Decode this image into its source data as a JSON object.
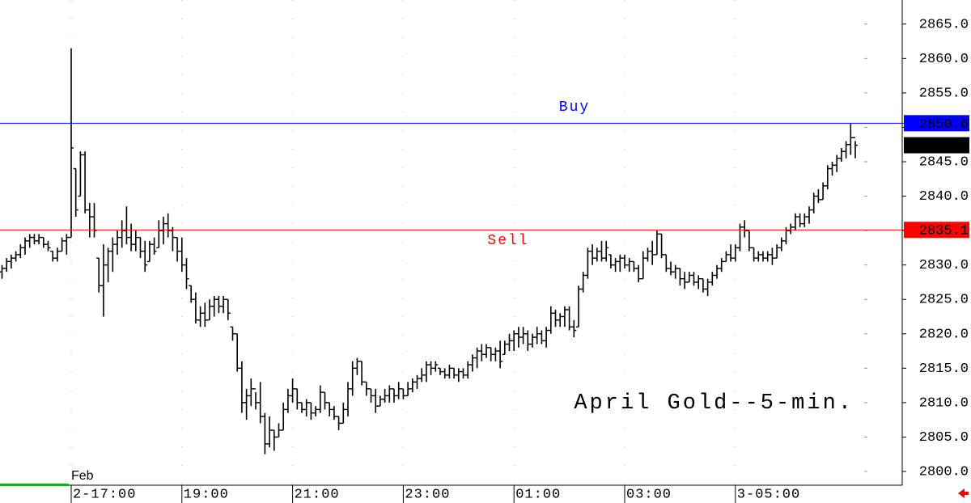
{
  "chart_data": {
    "type": "ohlc",
    "annotation": "April Gold--5-min.",
    "date_label": "Feb",
    "categories": [
      null,
      null,
      null,
      null,
      null,
      null,
      null,
      null,
      null,
      null,
      null,
      null,
      null,
      null,
      null,
      "2-17:00",
      null,
      null,
      null,
      null,
      null,
      null,
      null,
      null,
      null,
      null,
      null,
      null,
      null,
      null,
      null,
      null,
      null,
      null,
      null,
      null,
      null,
      null,
      null,
      "19:00",
      null,
      null,
      null,
      null,
      null,
      null,
      null,
      null,
      null,
      null,
      null,
      null,
      null,
      null,
      null,
      null,
      null,
      null,
      null,
      null,
      null,
      null,
      null,
      "21:00",
      null,
      null,
      null,
      null,
      null,
      null,
      null,
      null,
      null,
      null,
      null,
      null,
      null,
      null,
      null,
      null,
      null,
      null,
      null,
      null,
      null,
      null,
      null,
      "23:00",
      null,
      null,
      null,
      null,
      null,
      null,
      null,
      null,
      null,
      null,
      null,
      null,
      null,
      null,
      null,
      null,
      null,
      null,
      null,
      null,
      null,
      null,
      null,
      "01:00",
      null,
      null,
      null,
      null,
      null,
      null,
      null,
      null,
      null,
      null,
      null,
      null,
      null,
      null,
      null,
      null,
      null,
      null,
      null,
      null,
      null,
      null,
      null,
      "03:00",
      null,
      null,
      null,
      null,
      null,
      null,
      null,
      null,
      null,
      null,
      null,
      null,
      null,
      null,
      null,
      null,
      null,
      null,
      null,
      null,
      null,
      null,
      null,
      "3-05:00",
      null,
      null,
      null,
      null,
      null,
      null,
      null,
      null,
      null,
      null,
      null,
      null,
      null,
      null,
      null,
      null,
      null,
      null,
      null,
      null,
      null,
      null,
      null,
      null,
      null,
      null
    ],
    "open": [
      2829,
      2829.5,
      2830.5,
      2831,
      2831.5,
      2832.5,
      2833.5,
      2834,
      2833.5,
      2834,
      2833,
      2832,
      2831,
      2832,
      2833.5,
      2834,
      2844,
      2840,
      2846,
      2838,
      2837,
      2831,
      2827,
      2830,
      2832,
      2833,
      2834,
      2835,
      2834,
      2833,
      2834,
      2832,
      2830.5,
      2833,
      2832.5,
      2835,
      2836,
      2835,
      2834,
      2832,
      2830,
      2827,
      2825,
      2822,
      2823,
      2822,
      2824,
      2825,
      2824,
      2825,
      2821,
      2820,
      2815,
      2810,
      2811,
      2812,
      2810,
      2808,
      2804,
      2806,
      2805,
      2806,
      2809,
      2811,
      2812,
      2810,
      2809,
      2810,
      2808.5,
      2809,
      2811.5,
      2810,
      2809,
      2808,
      2807,
      2809,
      2812,
      2815,
      2816,
      2813,
      2812,
      2811,
      2809.5,
      2810.5,
      2811,
      2812,
      2811,
      2812,
      2811,
      2812,
      2813,
      2813.5,
      2814,
      2815.5,
      2815,
      2815,
      2814.5,
      2814,
      2815,
      2814,
      2814.5,
      2814,
      2815.5,
      2816.5,
      2817.5,
      2817,
      2818,
      2817,
      2817.5,
      2817,
      2818.5,
      2819,
      2820,
      2819.5,
      2820,
      2818.5,
      2819.5,
      2820,
      2819,
      2820.5,
      2823,
      2822,
      2822.5,
      2823.5,
      2821,
      2821,
      2826.5,
      2828.5,
      2832,
      2831,
      2832,
      2831,
      2831.5,
      2830,
      2830.5,
      2831,
      2830,
      2830.5,
      2829.5,
      2828,
      2831,
      2832,
      2831.5,
      2834.5,
      2831.5,
      2829.5,
      2829,
      2829.5,
      2828,
      2827.5,
      2828.5,
      2827.5,
      2828,
      2826.5,
      2827.5,
      2828.5,
      2829.5,
      2830.5,
      2831.5,
      2831,
      2832.5,
      2835.5,
      2835,
      2832.5,
      2831,
      2831.5,
      2831,
      2831.5,
      2831,
      2832.5,
      2833.5,
      2835,
      2835.5,
      2837,
      2836,
      2837,
      2838,
      2840,
      2839.5,
      2841.5,
      2844,
      2844.5,
      2845.5,
      2846.5,
      2847.5,
      2848.5
    ],
    "high": [
      2830,
      2831,
      2831.5,
      2832,
      2833,
      2834,
      2834.5,
      2834.5,
      2834.5,
      2834,
      2833.5,
      2832,
      2832.5,
      2834,
      2834.5,
      2861.5,
      2844,
      2846.5,
      2846.5,
      2839,
      2839,
      2831,
      2833,
      2832.5,
      2834,
      2835,
      2836.5,
      2838.5,
      2836,
      2835,
      2834,
      2833.5,
      2833.5,
      2834,
      2836.5,
      2837,
      2837.5,
      2835.5,
      2834,
      2834,
      2831,
      2827,
      2826,
      2824,
      2824.5,
      2825,
      2825.5,
      2825.5,
      2825.5,
      2825,
      2821,
      2820,
      2816,
      2812,
      2813.5,
      2811.5,
      2813,
      2808.5,
      2808,
      2806,
      2807,
      2810,
      2812,
      2813.5,
      2812,
      2810,
      2810.5,
      2810,
      2809.5,
      2812.5,
      2811.5,
      2810,
      2809.5,
      2808,
      2810,
      2813,
      2816,
      2816.5,
      2816,
      2813,
      2812,
      2812,
      2811,
      2812,
      2812.5,
      2812,
      2813,
      2812,
      2813,
      2813.5,
      2814,
      2815,
      2816,
      2816,
      2816,
      2815,
      2815,
      2815.5,
      2815,
      2815,
      2815,
      2816,
      2817,
      2818,
      2818.5,
      2818.5,
      2818,
      2818,
      2819,
      2819,
      2820,
      2820.5,
      2821,
      2821,
      2820.5,
      2820,
      2821,
      2820.5,
      2821,
      2824,
      2823.5,
      2823,
      2824,
      2824,
      2822,
      2827,
      2829,
      2832.5,
      2833,
      2832.5,
      2833.5,
      2833.5,
      2831.5,
      2831,
      2831.5,
      2831.5,
      2831,
      2830.5,
      2830,
      2832,
      2832.5,
      2833.5,
      2835,
      2834.5,
      2831.5,
      2830.5,
      2830,
      2829.5,
      2829,
      2829,
      2829,
      2828.5,
      2828,
      2828,
      2829,
      2830,
      2831,
      2832,
      2833,
      2833,
      2836,
      2836.5,
      2835,
      2832.5,
      2832,
      2832,
      2832,
      2832.5,
      2833,
      2834,
      2835.5,
      2836,
      2837.5,
      2837.5,
      2837.5,
      2838.5,
      2840.5,
      2841,
      2842,
      2844.5,
      2845,
      2846,
      2847,
      2848,
      2850.6,
      2848
    ],
    "low": [
      2828,
      2829,
      2829.5,
      2830.5,
      2831,
      2831.5,
      2832.5,
      2833,
      2833,
      2832.5,
      2832,
      2830.5,
      2830.5,
      2832,
      2831.5,
      2834,
      2837,
      2840,
      2837.5,
      2834,
      2834,
      2826,
      2822.5,
      2827.5,
      2829,
      2831.5,
      2832.5,
      2833,
      2832,
      2832,
      2831,
      2829,
      2830.5,
      2831.5,
      2832.5,
      2833,
      2834,
      2832,
      2830.5,
      2829,
      2826.5,
      2824.5,
      2821.5,
      2821,
      2821,
      2822,
      2822.5,
      2823,
      2823,
      2822,
      2819,
      2814.5,
      2808.5,
      2807.5,
      2809.5,
      2809,
      2807,
      2802.5,
      2803.5,
      2803,
      2805,
      2806,
      2808.5,
      2810,
      2809,
      2808.5,
      2808,
      2807.5,
      2808,
      2808.5,
      2809,
      2808,
      2807.5,
      2806,
      2807,
      2808,
      2811,
      2814,
      2812.5,
      2811,
      2810,
      2808.5,
      2809.5,
      2810,
      2810,
      2810,
      2810.5,
      2810.5,
      2811,
      2811.5,
      2812,
      2813,
      2813,
      2814,
      2814.5,
      2814,
      2813.5,
      2813.5,
      2813.5,
      2813,
      2813.5,
      2813.5,
      2814.5,
      2815,
      2816,
      2816.5,
      2816,
      2816,
      2815,
      2817,
      2817.5,
      2817.5,
      2818,
      2818.5,
      2817.5,
      2818,
      2818.5,
      2818.5,
      2818,
      2820,
      2821,
      2821,
      2821,
      2820.5,
      2819.5,
      2821,
      2826,
      2828,
      2830,
      2830.5,
      2830.5,
      2830.5,
      2829.5,
      2829,
      2829,
      2829.5,
      2829,
      2829,
      2827.5,
      2828,
      2830.5,
      2830,
      2831.5,
      2831,
      2829,
      2828.5,
      2828,
      2827,
      2826.5,
      2827.5,
      2827,
      2826.5,
      2826,
      2825.5,
      2827,
      2828,
      2829,
      2830.5,
      2830.5,
      2830.5,
      2832,
      2834,
      2832,
      2830.5,
      2830.5,
      2830.5,
      2830.5,
      2830,
      2831,
      2832,
      2833,
      2834.5,
      2835,
      2835.5,
      2835.5,
      2836,
      2837.5,
      2839,
      2839.5,
      2841,
      2843,
      2843.5,
      2845,
      2845.5,
      2846,
      2845.5
    ],
    "close": [
      2829.5,
      2830.5,
      2831,
      2831.5,
      2832.5,
      2833.5,
      2834,
      2833.5,
      2834,
      2833,
      2832.5,
      2831,
      2832,
      2833.5,
      2834,
      2847,
      2838,
      2846,
      2838,
      2837,
      2835,
      2827,
      2830,
      2832,
      2833,
      2834,
      2835,
      2834,
      2833,
      2834,
      2832,
      2830,
      2833,
      2832,
      2835,
      2836,
      2835,
      2834,
      2832,
      2830,
      2828,
      2825,
      2822,
      2823,
      2822,
      2824,
      2825,
      2824,
      2825,
      2823,
      2820,
      2815,
      2810,
      2811,
      2812,
      2810,
      2808,
      2804,
      2806,
      2805,
      2806,
      2809,
      2811,
      2812,
      2810,
      2809,
      2810,
      2808.5,
      2809,
      2811.5,
      2810,
      2809,
      2808,
      2807,
      2809,
      2812,
      2815,
      2816,
      2813,
      2812,
      2811,
      2809.5,
      2810.5,
      2811,
      2812,
      2811,
      2812,
      2811,
      2812,
      2813,
      2813.5,
      2814,
      2815.5,
      2815,
      2815.5,
      2814.5,
      2814,
      2815,
      2814,
      2814.5,
      2814,
      2815.5,
      2816.5,
      2817.5,
      2817,
      2818,
      2817,
      2817.5,
      2816,
      2818.5,
      2819,
      2820,
      2819.5,
      2820,
      2818.5,
      2819.5,
      2820,
      2819,
      2820.5,
      2823,
      2822,
      2822.5,
      2823.5,
      2821,
      2820.5,
      2826.5,
      2828.5,
      2832,
      2831,
      2832,
      2831,
      2832.5,
      2830,
      2830.5,
      2831,
      2830,
      2830.5,
      2829.5,
      2828,
      2831,
      2832,
      2831.5,
      2834.5,
      2831.5,
      2829.5,
      2829,
      2829.5,
      2828,
      2827.5,
      2828.5,
      2827.5,
      2828,
      2826.5,
      2827.5,
      2828.5,
      2829.5,
      2830.5,
      2831.5,
      2831,
      2832.5,
      2835.5,
      2835,
      2832.5,
      2831,
      2831.5,
      2831,
      2831.5,
      2831,
      2832.5,
      2833.5,
      2835,
      2835.5,
      2837,
      2836,
      2837,
      2838,
      2840,
      2839.5,
      2841.5,
      2844,
      2844.5,
      2845.5,
      2846.5,
      2847.5,
      2848.5,
      2847.4
    ],
    "lines": [
      {
        "label": "Buy",
        "value": 2850.6,
        "color": "#0000ff"
      },
      {
        "label": "Sell",
        "value": 2835.1,
        "color": "#ff0000"
      }
    ],
    "last_price": 2847.4,
    "ylim": [
      2798,
      2868.5
    ],
    "yticks": [
      {
        "value": 2800,
        "label": "2800.0"
      },
      {
        "value": 2805,
        "label": "2805.0"
      },
      {
        "value": 2810,
        "label": "2810.0"
      },
      {
        "value": 2815,
        "label": "2815.0"
      },
      {
        "value": 2820,
        "label": "2820.0"
      },
      {
        "value": 2825,
        "label": "2825.0"
      },
      {
        "value": 2830,
        "label": "2830.0"
      },
      {
        "value": 2835,
        "label": "2835.0"
      },
      {
        "value": 2840,
        "label": "2840.0"
      },
      {
        "value": 2845,
        "label": "2845.0"
      },
      {
        "value": 2850,
        "label": "2850.0"
      },
      {
        "value": 2855,
        "label": "2855.0"
      },
      {
        "value": 2860,
        "label": "2860.0"
      },
      {
        "value": 2865,
        "label": "2865.0"
      }
    ],
    "color": "#000000"
  }
}
